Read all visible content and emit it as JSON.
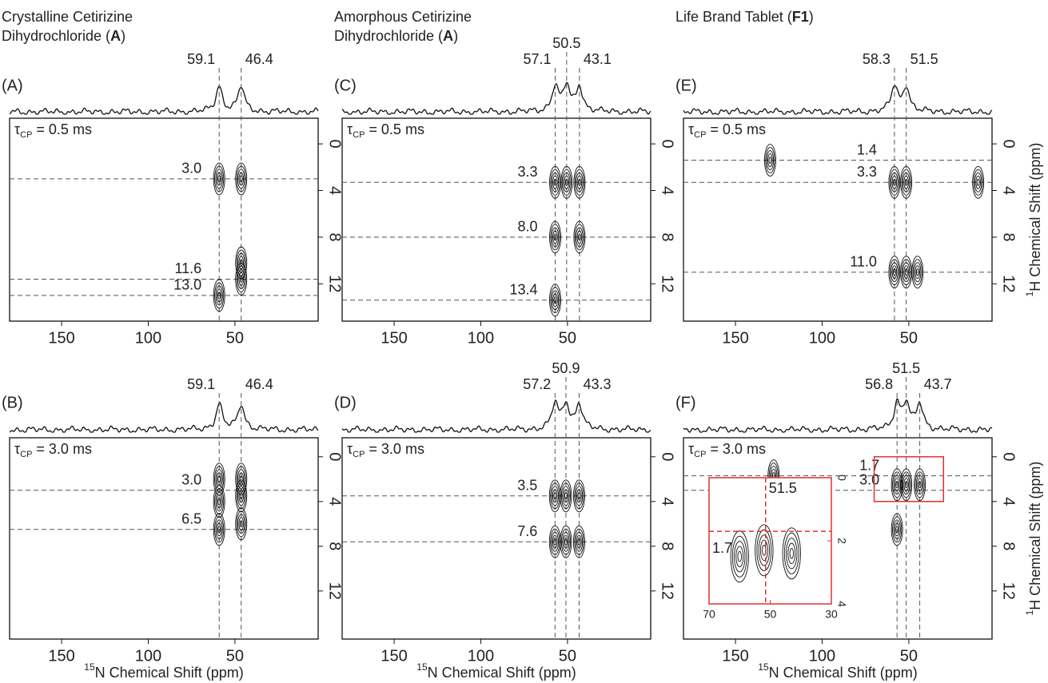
{
  "chart_data": [
    {
      "type": "contour",
      "title": {
        "line1": "Crystalline Cetirizine",
        "line2": "Dihydrochloride (",
        "bold": "A",
        "close": ")"
      },
      "panel": "(A)",
      "tau": {
        "symbol": "τ",
        "sub": "CP",
        "text": " = 0.5 ms"
      },
      "xlim": [
        180,
        2
      ],
      "ylim": [
        -2.2,
        15.2
      ],
      "xticks": [
        150,
        100,
        50
      ],
      "yticks": [
        0,
        4,
        8,
        12
      ],
      "n_shifts": [
        59.1,
        46.4
      ],
      "h_shifts": [
        {
          "value": 3,
          "label": "3.0"
        },
        11.6,
        {
          "value": 13,
          "label": "13.0"
        }
      ],
      "peaks": {
        "x": [
          59.1,
          46.4,
          46.4,
          46.4,
          59.1
        ],
        "y": [
          3.0,
          3.0,
          10.2,
          11.6,
          13.0
        ]
      }
    },
    {
      "type": "contour",
      "panel": "(B)",
      "tau": {
        "symbol": "τ",
        "sub": "CP",
        "text": " = 3.0 ms"
      },
      "xlim": [
        180,
        2
      ],
      "ylim": [
        -1.7,
        16.3
      ],
      "xticks": [
        150,
        100,
        50
      ],
      "yticks": [
        0,
        4,
        8,
        12
      ],
      "xlabel": {
        "sup": "15",
        "text": "N Chemical Shift (ppm)"
      },
      "n_shifts": [
        59.1,
        46.4
      ],
      "h_shifts": [
        {
          "value": 3,
          "label": "3.0"
        },
        6.5
      ],
      "peaks": {
        "x": [
          59.1,
          59.1,
          59.1,
          46.4,
          46.4,
          46.4
        ],
        "y": [
          2.0,
          4.0,
          6.5,
          2.0,
          3.5,
          6.0
        ]
      }
    },
    {
      "type": "contour",
      "title": {
        "line1": "Amorphous Cetirizine",
        "line2": "Dihydrochloride (",
        "bold": "A",
        "close": ")"
      },
      "panel": "(C)",
      "tau": {
        "symbol": "τ",
        "sub": "CP",
        "text": " = 0.5 ms"
      },
      "xlim": [
        180,
        2
      ],
      "ylim": [
        -2.2,
        15.2
      ],
      "xticks": [
        150,
        100,
        50
      ],
      "yticks": [
        0,
        4,
        8,
        12
      ],
      "n_shifts": [
        57.1,
        50.5,
        43.1
      ],
      "h_shifts": [
        3.3,
        {
          "value": 8,
          "label": "8.0"
        },
        13.4
      ],
      "peaks": {
        "x": [
          57.1,
          50.5,
          43.1,
          57.1,
          43.1,
          57.1
        ],
        "y": [
          3.3,
          3.3,
          3.3,
          8.0,
          8.0,
          13.4
        ]
      }
    },
    {
      "type": "contour",
      "panel": "(D)",
      "tau": {
        "symbol": "τ",
        "sub": "CP",
        "text": " = 3.0 ms"
      },
      "xlim": [
        180,
        2
      ],
      "ylim": [
        -1.7,
        16.3
      ],
      "xticks": [
        150,
        100,
        50
      ],
      "yticks": [
        0,
        4,
        8,
        12
      ],
      "xlabel": {
        "sup": "15",
        "text": "N Chemical Shift (ppm)"
      },
      "n_shifts": [
        57.2,
        50.9,
        43.3
      ],
      "h_shifts": [
        3.5,
        7.6
      ],
      "peaks": {
        "x": [
          57.2,
          50.9,
          43.3,
          57.2,
          50.9,
          43.3
        ],
        "y": [
          3.5,
          3.5,
          3.5,
          7.6,
          7.6,
          7.6
        ]
      }
    },
    {
      "type": "contour",
      "title": {
        "line1": "Life Brand Tablet (",
        "bold": "F1",
        "close": ")"
      },
      "panel": "(E)",
      "tau": {
        "symbol": "τ",
        "sub": "CP",
        "text": " = 0.5 ms"
      },
      "xlim": [
        180,
        2
      ],
      "ylim": [
        -2.2,
        15.2
      ],
      "xticks": [
        150,
        100,
        50
      ],
      "yticks": [
        0,
        4,
        8,
        12
      ],
      "ylabel": {
        "sup": "1",
        "text": "H Chemical Shift (ppm)"
      },
      "n_shifts": [
        58.3,
        51.5
      ],
      "h_shifts": [
        1.4,
        3.3,
        {
          "value": 11,
          "label": "11.0"
        }
      ],
      "peaks": {
        "x": [
          130,
          58.3,
          51.5,
          10,
          58.3,
          51.5,
          45
        ],
        "y": [
          1.4,
          3.3,
          3.3,
          3.3,
          11.0,
          11.0,
          11.0
        ]
      }
    },
    {
      "type": "contour",
      "panel": "(F)",
      "tau": {
        "symbol": "τ",
        "sub": "CP",
        "text": " = 3.0 ms"
      },
      "xlim": [
        180,
        2
      ],
      "ylim": [
        -1.7,
        16.3
      ],
      "xticks": [
        150,
        100,
        50
      ],
      "yticks": [
        0,
        4,
        8,
        12
      ],
      "xlabel": {
        "sup": "15",
        "text": "N Chemical Shift (ppm)"
      },
      "ylabel": {
        "sup": "1",
        "text": "H Chemical Shift (ppm)"
      },
      "n_shifts": [
        56.8,
        51.5,
        43.7
      ],
      "h_shifts": [
        1.7,
        {
          "value": 3,
          "label": "3.0"
        }
      ],
      "peaks": {
        "x": [
          128,
          56.8,
          51.5,
          43.7,
          56.8
        ],
        "y": [
          1.7,
          2.5,
          2.5,
          2.5,
          6.5
        ]
      },
      "inset": {
        "xlim": [
          70,
          30
        ],
        "ylim": [
          0,
          4
        ],
        "xticks": [
          70,
          50,
          30
        ],
        "yticks": [
          0,
          2,
          4
        ],
        "n_shifts": [
          51.5
        ],
        "h_shifts": [
          1.7
        ],
        "peaks": {
          "x": [
            60,
            52,
            43
          ],
          "y": [
            2.5,
            2.3,
            2.4
          ]
        }
      }
    }
  ]
}
